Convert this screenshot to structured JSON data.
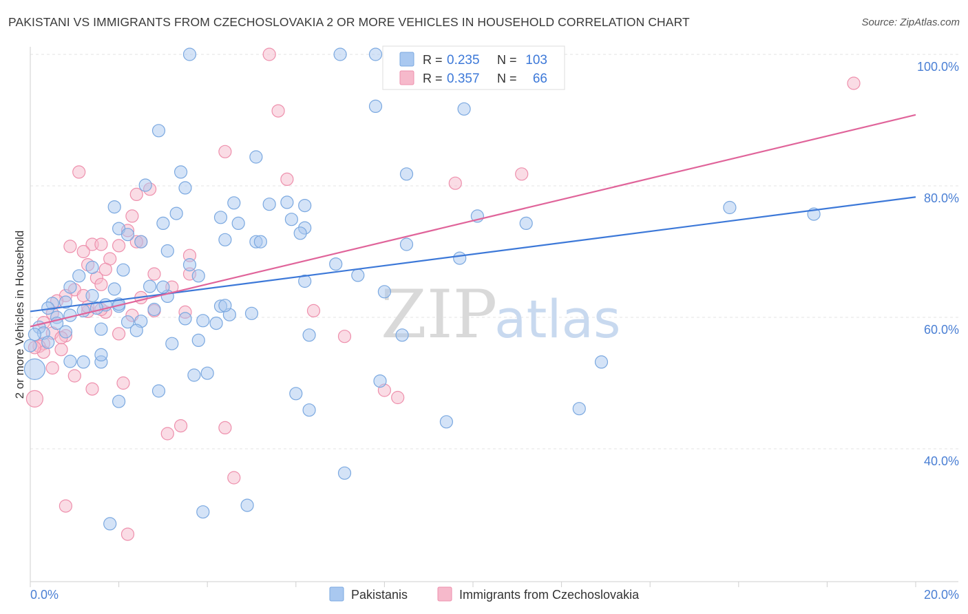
{
  "header": {
    "title": "PAKISTANI VS IMMIGRANTS FROM CZECHOSLOVAKIA 2 OR MORE VEHICLES IN HOUSEHOLD CORRELATION CHART",
    "source": "Source: ZipAtlas.com"
  },
  "watermark": {
    "zip": "ZIP",
    "atlas": "atlas"
  },
  "legend_top": {
    "rows": [
      {
        "r_label": "R =",
        "r_value": "0.235",
        "n_label": "N =",
        "n_value": "103",
        "color": "#a9c8f0",
        "edge": "#7aa8e0"
      },
      {
        "r_label": "R =",
        "r_value": "0.357",
        "n_label": "N =",
        "n_value": "66",
        "color": "#f6b9cb",
        "edge": "#ee8fac"
      }
    ]
  },
  "legend_bottom": {
    "items": [
      {
        "label": "Pakistanis",
        "color": "#a9c8f0",
        "edge": "#7aa8e0"
      },
      {
        "label": "Immigrants from Czechoslovakia",
        "color": "#f6b9cb",
        "edge": "#ee8fac"
      }
    ]
  },
  "chart_data": {
    "type": "scatter",
    "title": "PAKISTANI VS IMMIGRANTS FROM CZECHOSLOVAKIA 2 OR MORE VEHICLES IN HOUSEHOLD CORRELATION CHART",
    "xlabel": "",
    "ylabel": "2 or more Vehicles in Household",
    "xlim": [
      0,
      20
    ],
    "ylim": [
      20,
      102
    ],
    "x_tick_labels": [
      "0.0%",
      "20.0%"
    ],
    "y_ticks": [
      40,
      60,
      80,
      100
    ],
    "y_tick_labels": [
      "40.0%",
      "60.0%",
      "80.0%",
      "100.0%"
    ],
    "grid": true,
    "legend_position": "top-center",
    "series": [
      {
        "name": "Pakistanis",
        "color": "#7aa8e0",
        "fill": "#a9c8f0",
        "trend": {
          "x": [
            0,
            20
          ],
          "y": [
            60.9,
            78.3
          ],
          "color": "#3c78d8"
        },
        "points": [
          [
            3.6,
            100
          ],
          [
            7.0,
            100
          ],
          [
            7.8,
            100
          ],
          [
            2.9,
            88.4
          ],
          [
            7.8,
            92.1
          ],
          [
            9.8,
            91.7
          ],
          [
            5.1,
            84.4
          ],
          [
            3.4,
            82.1
          ],
          [
            8.5,
            81.8
          ],
          [
            2.6,
            80.1
          ],
          [
            3.5,
            79.7
          ],
          [
            4.6,
            77.4
          ],
          [
            5.4,
            77.2
          ],
          [
            5.8,
            77.5
          ],
          [
            6.2,
            77.0
          ],
          [
            1.9,
            76.8
          ],
          [
            3.3,
            75.8
          ],
          [
            4.3,
            75.2
          ],
          [
            4.7,
            74.3
          ],
          [
            5.9,
            74.9
          ],
          [
            2.0,
            73.5
          ],
          [
            3.0,
            74.3
          ],
          [
            6.2,
            73.6
          ],
          [
            10.1,
            75.4
          ],
          [
            11.2,
            74.3
          ],
          [
            15.8,
            76.7
          ],
          [
            17.7,
            75.7
          ],
          [
            2.2,
            72.6
          ],
          [
            4.4,
            71.8
          ],
          [
            5.1,
            71.5
          ],
          [
            5.2,
            71.5
          ],
          [
            6.1,
            72.8
          ],
          [
            8.5,
            71.1
          ],
          [
            3.1,
            70.1
          ],
          [
            2.5,
            71.5
          ],
          [
            9.7,
            69.0
          ],
          [
            3.6,
            68.0
          ],
          [
            1.4,
            67.6
          ],
          [
            2.1,
            67.2
          ],
          [
            3.8,
            66.3
          ],
          [
            6.9,
            68.1
          ],
          [
            7.4,
            66.4
          ],
          [
            6.2,
            65.5
          ],
          [
            8.0,
            63.9
          ],
          [
            0.9,
            64.6
          ],
          [
            1.9,
            64.3
          ],
          [
            2.7,
            64.7
          ],
          [
            3.1,
            63.2
          ],
          [
            3.0,
            64.6
          ],
          [
            1.4,
            63.3
          ],
          [
            0.5,
            62.1
          ],
          [
            0.8,
            62.3
          ],
          [
            1.2,
            61.0
          ],
          [
            1.7,
            61.9
          ],
          [
            2.0,
            61.7
          ],
          [
            2.8,
            61.2
          ],
          [
            4.3,
            61.7
          ],
          [
            0.4,
            61.4
          ],
          [
            0.9,
            60.3
          ],
          [
            1.5,
            61.4
          ],
          [
            0.6,
            60.0
          ],
          [
            0.6,
            59.1
          ],
          [
            0.2,
            58.5
          ],
          [
            0.3,
            57.6
          ],
          [
            0.8,
            57.8
          ],
          [
            1.6,
            58.2
          ],
          [
            2.2,
            59.3
          ],
          [
            2.5,
            59.4
          ],
          [
            3.9,
            59.5
          ],
          [
            4.2,
            59.1
          ],
          [
            4.5,
            60.4
          ],
          [
            5.0,
            60.6
          ],
          [
            6.3,
            57.3
          ],
          [
            8.4,
            57.3
          ],
          [
            0.1,
            57.4
          ],
          [
            0.4,
            56.2
          ],
          [
            0.0,
            55.7
          ],
          [
            3.2,
            56.0
          ],
          [
            3.8,
            56.5
          ],
          [
            2.4,
            58.0
          ],
          [
            0.9,
            53.3
          ],
          [
            1.2,
            53.2
          ],
          [
            1.6,
            53.2
          ],
          [
            1.6,
            54.3
          ],
          [
            12.9,
            53.2
          ],
          [
            3.7,
            51.2
          ],
          [
            7.9,
            50.3
          ],
          [
            2.9,
            48.8
          ],
          [
            6.0,
            48.4
          ],
          [
            2.0,
            47.2
          ],
          [
            6.3,
            45.9
          ],
          [
            12.4,
            46.1
          ],
          [
            9.4,
            44.1
          ],
          [
            7.1,
            36.3
          ],
          [
            3.9,
            30.4
          ],
          [
            4.9,
            31.4
          ],
          [
            1.8,
            28.6
          ],
          [
            0.1,
            52.1
          ],
          [
            4.0,
            51.5
          ],
          [
            3.5,
            59.8
          ],
          [
            4.4,
            61.8
          ],
          [
            2.0,
            62.0
          ],
          [
            1.1,
            66.3
          ]
        ]
      },
      {
        "name": "Immigrants from Czechoslovakia",
        "color": "#ee8fac",
        "fill": "#f6b9cb",
        "trend": {
          "x": [
            0,
            20
          ],
          "y": [
            58.6,
            90.8
          ],
          "color": "#e0649a"
        },
        "points": [
          [
            5.4,
            100
          ],
          [
            18.6,
            95.6
          ],
          [
            5.6,
            91.4
          ],
          [
            4.4,
            85.2
          ],
          [
            1.1,
            82.1
          ],
          [
            11.1,
            81.8
          ],
          [
            5.8,
            81.0
          ],
          [
            9.6,
            80.4
          ],
          [
            2.7,
            79.5
          ],
          [
            2.4,
            78.7
          ],
          [
            2.3,
            75.4
          ],
          [
            2.2,
            73.2
          ],
          [
            2.5,
            71.5
          ],
          [
            0.9,
            70.8
          ],
          [
            1.4,
            71.1
          ],
          [
            1.6,
            71.1
          ],
          [
            2.0,
            70.9
          ],
          [
            2.4,
            71.5
          ],
          [
            1.2,
            70.0
          ],
          [
            3.6,
            69.4
          ],
          [
            1.8,
            68.9
          ],
          [
            1.3,
            68.0
          ],
          [
            2.8,
            66.6
          ],
          [
            1.7,
            67.3
          ],
          [
            1.5,
            66.0
          ],
          [
            1.6,
            65.0
          ],
          [
            1.0,
            64.2
          ],
          [
            3.2,
            64.6
          ],
          [
            0.8,
            63.3
          ],
          [
            1.2,
            63.3
          ],
          [
            2.5,
            63.0
          ],
          [
            2.3,
            60.3
          ],
          [
            0.6,
            62.5
          ],
          [
            0.5,
            60.6
          ],
          [
            1.3,
            60.9
          ],
          [
            1.7,
            60.8
          ],
          [
            2.8,
            61.0
          ],
          [
            3.5,
            60.8
          ],
          [
            6.4,
            61.0
          ],
          [
            0.3,
            59.2
          ],
          [
            0.5,
            57.6
          ],
          [
            0.8,
            57.2
          ],
          [
            2.0,
            57.5
          ],
          [
            0.3,
            56.0
          ],
          [
            0.7,
            56.9
          ],
          [
            7.1,
            57.1
          ],
          [
            0.2,
            55.6
          ],
          [
            0.3,
            54.7
          ],
          [
            0.1,
            55.4
          ],
          [
            0.5,
            52.3
          ],
          [
            1.0,
            51.1
          ],
          [
            2.1,
            50.0
          ],
          [
            1.4,
            49.1
          ],
          [
            8.0,
            48.9
          ],
          [
            8.3,
            47.8
          ],
          [
            0.1,
            47.6
          ],
          [
            3.4,
            43.5
          ],
          [
            3.1,
            42.3
          ],
          [
            4.4,
            43.2
          ],
          [
            4.6,
            35.6
          ],
          [
            0.8,
            31.3
          ],
          [
            2.2,
            27.0
          ],
          [
            3.6,
            66.6
          ],
          [
            0.7,
            55.1
          ],
          [
            1.6,
            61.2
          ],
          [
            1.3,
            61.6
          ]
        ]
      }
    ]
  }
}
